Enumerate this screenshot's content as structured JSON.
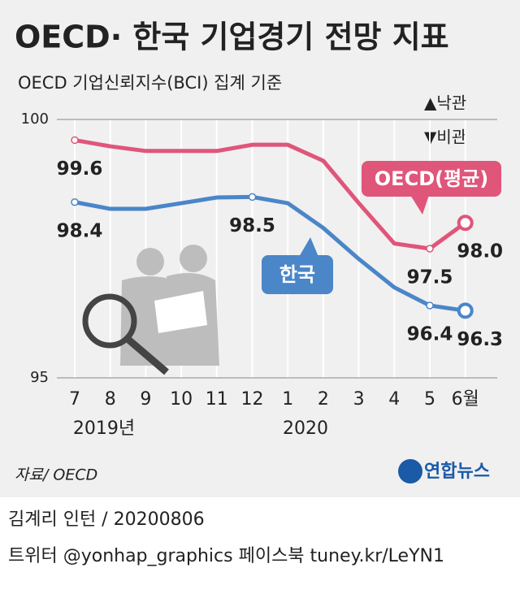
{
  "chart_data": {
    "type": "line",
    "title": "OECD· 한국 기업경기 전망 지표",
    "subtitle": "OECD 기업신뢰지수(BCI) 집계 기준",
    "annotations": [
      "▲낙관",
      "▼비관"
    ],
    "categories": [
      "7",
      "8",
      "9",
      "10",
      "11",
      "12",
      "1",
      "2",
      "3",
      "4",
      "5",
      "6월"
    ],
    "x_group_labels": [
      "2019년",
      "2020"
    ],
    "series": [
      {
        "name": "OECD(평균)",
        "color": "#e0557a",
        "values": [
          99.6,
          99.48,
          99.39,
          99.39,
          99.39,
          99.51,
          99.51,
          99.2,
          98.38,
          97.6,
          97.5,
          98.0
        ],
        "value_labels": [
          "99.6",
          null,
          null,
          null,
          null,
          null,
          null,
          null,
          null,
          null,
          "97.5",
          "98.0"
        ]
      },
      {
        "name": "한국",
        "color": "#4a86c8",
        "values": [
          98.4,
          98.27,
          98.27,
          98.38,
          98.49,
          98.5,
          98.38,
          97.9,
          97.3,
          96.75,
          96.4,
          96.3
        ],
        "value_labels": [
          "98.4",
          null,
          null,
          null,
          null,
          "98.5",
          null,
          null,
          null,
          null,
          "96.4",
          "96.3"
        ]
      }
    ],
    "ylim": [
      95,
      100
    ],
    "yticks": [
      95,
      100
    ],
    "source": "자료/ OECD",
    "logo": "연합뉴스",
    "byline": "김계리 인턴 / 20200806",
    "footer": "트위터 @yonhap_graphics  페이스북 tuney.kr/LeYN1"
  }
}
